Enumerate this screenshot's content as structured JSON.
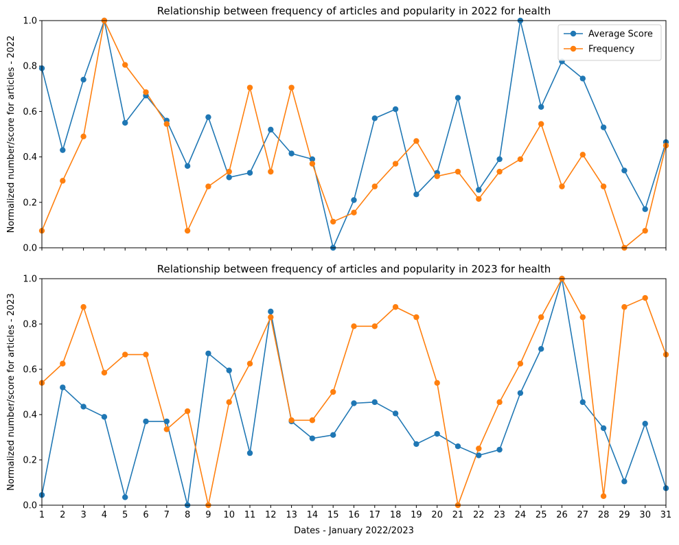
{
  "colors": {
    "average_score": "#1f77b4",
    "frequency": "#ff7f0e"
  },
  "chart_data": [
    {
      "type": "line",
      "title": "Relationship between frequency of articles and popularity in 2022 for health",
      "xlabel": "",
      "ylabel": "Normalized number/score for articles - 2022",
      "x": [
        1,
        2,
        3,
        4,
        5,
        6,
        7,
        8,
        9,
        10,
        11,
        12,
        13,
        14,
        15,
        16,
        17,
        18,
        19,
        20,
        21,
        22,
        23,
        24,
        25,
        26,
        27,
        28,
        29,
        30,
        31
      ],
      "xlim": [
        1,
        31
      ],
      "ylim": [
        0,
        1
      ],
      "yticks": [
        "0.0",
        "0.2",
        "0.4",
        "0.6",
        "0.8",
        "1.0"
      ],
      "show_xtick_labels": false,
      "grid": false,
      "legend": "top-right",
      "series": [
        {
          "name": "Average Score",
          "values": [
            0.79,
            0.43,
            0.74,
            1.0,
            0.55,
            0.67,
            0.56,
            0.36,
            0.575,
            0.31,
            0.33,
            0.52,
            0.415,
            0.39,
            0.0,
            0.21,
            0.57,
            0.61,
            0.235,
            0.33,
            0.66,
            0.255,
            0.39,
            1.0,
            0.62,
            0.82,
            0.745,
            0.53,
            0.34,
            0.17,
            0.465
          ]
        },
        {
          "name": "Frequency",
          "values": [
            0.075,
            0.295,
            0.49,
            1.0,
            0.805,
            0.685,
            0.545,
            0.075,
            0.27,
            0.335,
            0.705,
            0.335,
            0.705,
            0.37,
            0.115,
            0.155,
            0.27,
            0.37,
            0.47,
            0.315,
            0.335,
            0.215,
            0.335,
            0.39,
            0.545,
            0.27,
            0.41,
            0.27,
            0.0,
            0.075,
            0.45
          ]
        }
      ]
    },
    {
      "type": "line",
      "title": "Relationship between frequency of articles and popularity in 2023 for health",
      "xlabel": "Dates - January 2022/2023",
      "ylabel": "Normalized number/score for articles - 2023",
      "x": [
        1,
        2,
        3,
        4,
        5,
        6,
        7,
        8,
        9,
        10,
        11,
        12,
        13,
        14,
        15,
        16,
        17,
        18,
        19,
        20,
        21,
        22,
        23,
        24,
        25,
        26,
        27,
        28,
        29,
        30,
        31
      ],
      "xlim": [
        1,
        31
      ],
      "ylim": [
        0,
        1
      ],
      "yticks": [
        "0.0",
        "0.2",
        "0.4",
        "0.6",
        "0.8",
        "1.0"
      ],
      "show_xtick_labels": true,
      "grid": false,
      "legend": "none",
      "series": [
        {
          "name": "Average Score",
          "values": [
            0.045,
            0.52,
            0.435,
            0.39,
            0.035,
            0.37,
            0.37,
            0.0,
            0.67,
            0.595,
            0.23,
            0.855,
            0.37,
            0.295,
            0.31,
            0.45,
            0.455,
            0.405,
            0.27,
            0.315,
            0.26,
            0.22,
            0.245,
            0.495,
            0.69,
            1.0,
            0.455,
            0.34,
            0.105,
            0.36,
            0.075
          ]
        },
        {
          "name": "Frequency",
          "values": [
            0.54,
            0.625,
            0.875,
            0.585,
            0.665,
            0.665,
            0.335,
            0.415,
            0.0,
            0.455,
            0.625,
            0.83,
            0.375,
            0.375,
            0.5,
            0.79,
            0.79,
            0.875,
            0.83,
            0.54,
            0.0,
            0.25,
            0.455,
            0.625,
            0.83,
            1.0,
            0.83,
            0.04,
            0.875,
            0.915,
            0.665
          ]
        }
      ]
    }
  ]
}
